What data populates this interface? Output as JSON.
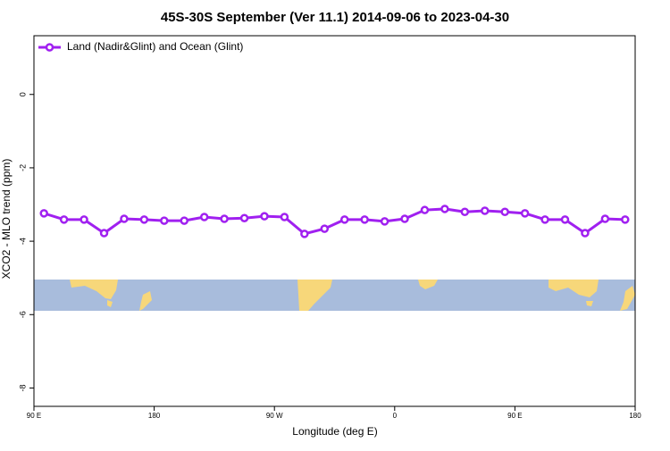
{
  "chart_data": {
    "type": "line",
    "title": "45S-30S September (Ver 11.1)   2014-09-06 to 2023-04-30",
    "x_label": "Longitude (deg E)",
    "y_label": "XCO2 - MLO trend (ppm)",
    "x": [
      97.5,
      112.5,
      127.5,
      142.5,
      157.5,
      172.5,
      187.5,
      202.5,
      217.5,
      232.5,
      247.5,
      262.5,
      277.5,
      292.5,
      307.5,
      322.5,
      337.5,
      352.5,
      367.5,
      382.5,
      397.5,
      412.5,
      427.5,
      442.5,
      457.5,
      472.5,
      487.5,
      502.5,
      517.5,
      532.5
    ],
    "series": [
      {
        "name": "Land (Nadir&Glint) and Ocean (Glint)",
        "color": "#a020f0",
        "values": [
          -3.24,
          -3.41,
          -3.41,
          -3.78,
          -3.39,
          -3.41,
          -3.44,
          -3.44,
          -3.34,
          -3.39,
          -3.37,
          -3.32,
          -3.34,
          -3.8,
          -3.66,
          -3.41,
          -3.41,
          -3.46,
          -3.39,
          -3.15,
          -3.12,
          -3.2,
          -3.17,
          -3.2,
          -3.24,
          -3.41,
          -3.41,
          -3.78,
          -3.39,
          -3.41
        ]
      }
    ],
    "xlim": [
      90,
      540
    ],
    "ylim": [
      -8.5,
      1.6
    ],
    "xticks": [
      {
        "value": 90,
        "label": "90 E"
      },
      {
        "value": 180,
        "label": "180"
      },
      {
        "value": 270,
        "label": "90 W"
      },
      {
        "value": 360,
        "label": "0"
      },
      {
        "value": 450,
        "label": "90 E"
      },
      {
        "value": 540,
        "label": "180"
      }
    ],
    "yticks": [
      0,
      -2,
      -4,
      -6,
      -8
    ],
    "legend": "top-left"
  }
}
